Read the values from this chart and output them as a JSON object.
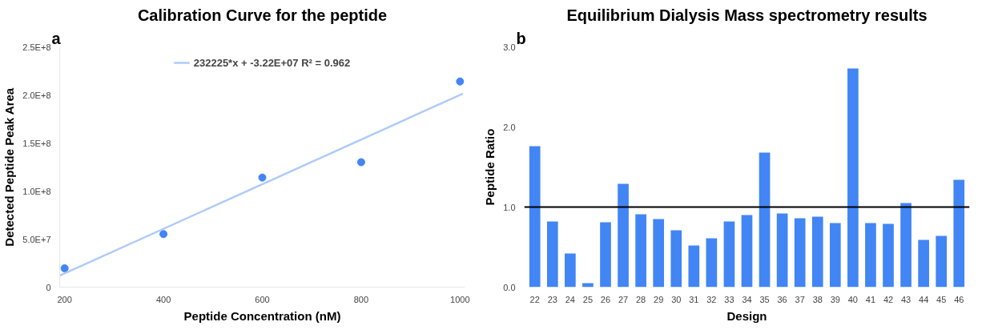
{
  "chart_data": [
    {
      "type": "scatter",
      "title": "Calibration Curve for the peptide",
      "xlabel": "Peptide Concentration (nM)",
      "ylabel": "Detected Peptide Peak Area",
      "annotations": [
        "a"
      ],
      "series": [
        {
          "type": "scatter",
          "color": "#4285f4",
          "x": [
            200,
            400,
            600,
            800,
            1000
          ],
          "values": [
            19600000,
            55200000,
            114000000,
            130000000,
            214000000
          ]
        },
        {
          "type": "line",
          "name": "232225*x + -3.22E+07 R² = 0.962",
          "color": "#aecbfa",
          "marker": "none",
          "x": [
            190,
            1006
          ],
          "values": [
            11900000,
            201400000
          ]
        }
      ],
      "xlim": [
        190,
        1010
      ],
      "xticks": [
        200,
        400,
        600,
        800,
        1000
      ],
      "ylim": [
        0,
        250000000
      ],
      "yticks": [
        0,
        {
          "value": 50000000,
          "label": "5.0E+7"
        },
        {
          "value": 100000000,
          "label": "1.0E+8"
        },
        {
          "value": 150000000,
          "label": "1.5E+8"
        },
        {
          "value": 200000000,
          "label": "2.0E+8"
        },
        {
          "value": 250000000,
          "label": "2.5E+8"
        }
      ],
      "marker": "circle",
      "legend": "top",
      "grid": false
    },
    {
      "type": "bar",
      "title": "Equilibrium Dialysis Mass spectrometry results",
      "xlabel": "Design",
      "ylabel": "Peptide Ratio",
      "annotations": [
        "b"
      ],
      "categories": [
        "22",
        "23",
        "24",
        "25",
        "26",
        "27",
        "28",
        "29",
        "30",
        "31",
        "32",
        "33",
        "34",
        "35",
        "36",
        "37",
        "38",
        "39",
        "40",
        "41",
        "42",
        "43",
        "44",
        "45",
        "46"
      ],
      "series": [
        {
          "color": "#4285f4",
          "values": [
            1.76,
            0.82,
            0.42,
            0.05,
            0.81,
            1.29,
            0.91,
            0.85,
            0.71,
            0.52,
            0.61,
            0.82,
            0.9,
            1.68,
            0.92,
            0.86,
            0.88,
            0.8,
            2.73,
            0.8,
            0.79,
            1.05,
            0.59,
            0.64,
            1.34
          ]
        }
      ],
      "ylim": [
        0,
        3
      ],
      "yticks": [
        {
          "value": 0,
          "label": "0.0"
        },
        {
          "value": 1,
          "label": "1.0"
        },
        {
          "value": 2,
          "label": "2.0"
        },
        {
          "value": 3,
          "label": "3.0"
        }
      ],
      "ref_lines": [
        {
          "axis": "y",
          "value": 1,
          "color": "#000000"
        }
      ],
      "legend": false,
      "grid": false
    }
  ]
}
